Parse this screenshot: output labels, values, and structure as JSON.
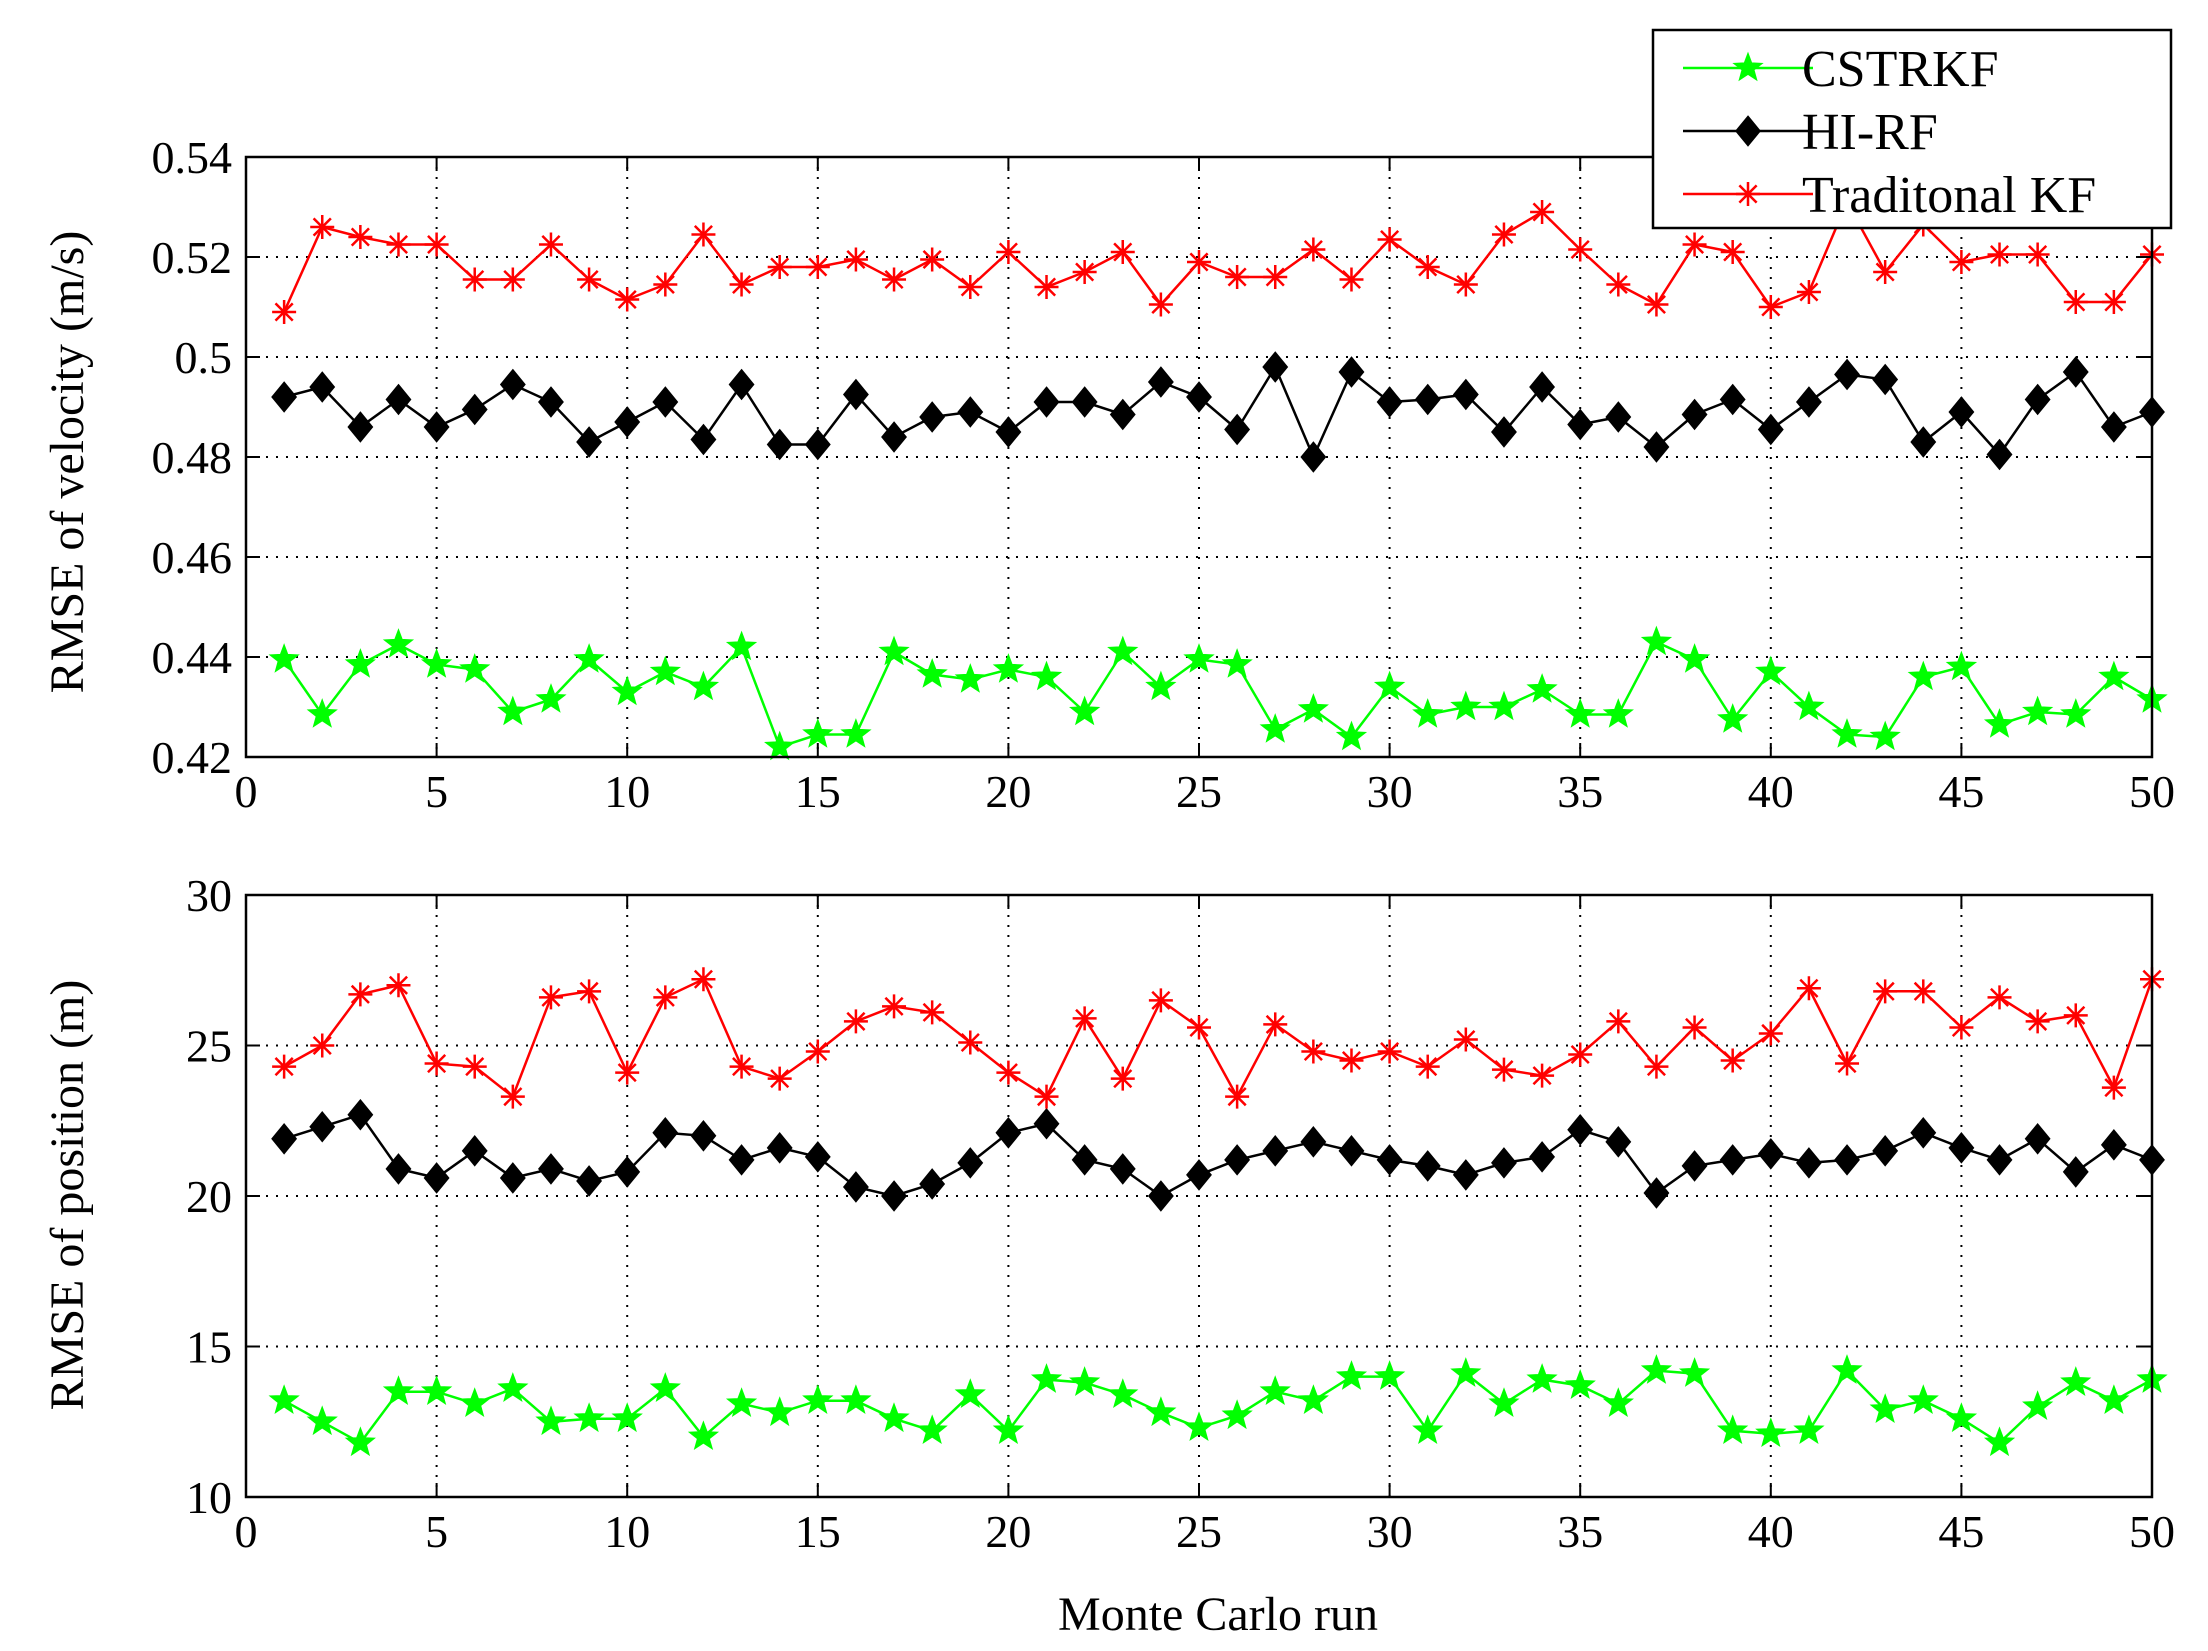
{
  "chart_data": [
    {
      "type": "line",
      "title": "",
      "xlabel": "",
      "ylabel": "RMSE of velocity (m/s)",
      "xlim": [
        0,
        50
      ],
      "ylim": [
        0.42,
        0.54
      ],
      "xticks": [
        0,
        5,
        10,
        15,
        20,
        25,
        30,
        35,
        40,
        45,
        50
      ],
      "yticks": [
        0.42,
        0.44,
        0.46,
        0.48,
        0.5,
        0.52,
        0.54
      ],
      "ytick_labels": [
        "0.42",
        "0.44",
        "0.46",
        "0.48",
        "0.5",
        "0.52",
        "0.54"
      ],
      "grid": true,
      "legend_position": "top-right",
      "x": [
        1,
        2,
        3,
        4,
        5,
        6,
        7,
        8,
        9,
        10,
        11,
        12,
        13,
        14,
        15,
        16,
        17,
        18,
        19,
        20,
        21,
        22,
        23,
        24,
        25,
        26,
        27,
        28,
        29,
        30,
        31,
        32,
        33,
        34,
        35,
        36,
        37,
        38,
        39,
        40,
        41,
        42,
        43,
        44,
        45,
        46,
        47,
        48,
        49,
        50
      ],
      "series": [
        {
          "name": "CSTRKF",
          "color": "#00ff00",
          "marker": "pentagram",
          "values": [
            0.4395,
            0.4285,
            0.4385,
            0.4425,
            0.4385,
            0.4375,
            0.429,
            0.4315,
            0.4395,
            0.433,
            0.437,
            0.434,
            0.442,
            0.422,
            0.4245,
            0.4245,
            0.441,
            0.4365,
            0.4355,
            0.4375,
            0.436,
            0.429,
            0.441,
            0.434,
            0.4395,
            0.4385,
            0.4255,
            0.4295,
            0.424,
            0.434,
            0.4285,
            0.43,
            0.43,
            0.4335,
            0.4285,
            0.4285,
            0.443,
            0.4395,
            0.4275,
            0.437,
            0.43,
            0.4245,
            0.424,
            0.436,
            0.438,
            0.4265,
            0.429,
            0.4285,
            0.436,
            0.4315
          ]
        },
        {
          "name": "HI-RF",
          "color": "#000000",
          "marker": "diamond",
          "values": [
            0.492,
            0.494,
            0.486,
            0.4915,
            0.486,
            0.4895,
            0.4945,
            0.491,
            0.483,
            0.487,
            0.491,
            0.4835,
            0.4945,
            0.4825,
            0.4825,
            0.4925,
            0.484,
            0.488,
            0.489,
            0.485,
            0.491,
            0.491,
            0.4885,
            0.495,
            0.492,
            0.4855,
            0.498,
            0.48,
            0.497,
            0.491,
            0.4915,
            0.4925,
            0.485,
            0.494,
            0.4865,
            0.488,
            0.482,
            0.4885,
            0.4915,
            0.4855,
            0.491,
            0.4965,
            0.4955,
            0.483,
            0.489,
            0.4805,
            0.4915,
            0.497,
            0.486,
            0.489
          ]
        },
        {
          "name": "Traditonal KF",
          "color": "#ff0000",
          "marker": "asterisk",
          "values": [
            0.509,
            0.526,
            0.524,
            0.5225,
            0.5225,
            0.5155,
            0.5155,
            0.5225,
            0.5155,
            0.5115,
            0.5145,
            0.5245,
            0.5145,
            0.518,
            0.518,
            0.5195,
            0.5155,
            0.5195,
            0.514,
            0.521,
            0.514,
            0.517,
            0.521,
            0.5105,
            0.519,
            0.516,
            0.516,
            0.5215,
            0.5155,
            0.5235,
            0.518,
            0.5145,
            0.5245,
            0.529,
            0.5215,
            0.5145,
            0.5105,
            0.5225,
            0.521,
            0.51,
            0.513,
            0.531,
            0.517,
            0.5265,
            0.519,
            0.5205,
            0.5205,
            0.511,
            0.511,
            0.5205
          ]
        }
      ]
    },
    {
      "type": "line",
      "title": "",
      "xlabel": "Monte Carlo run",
      "ylabel": "RMSE of position (m)",
      "xlim": [
        0,
        50
      ],
      "ylim": [
        10,
        30
      ],
      "xticks": [
        0,
        5,
        10,
        15,
        20,
        25,
        30,
        35,
        40,
        45,
        50
      ],
      "yticks": [
        10,
        15,
        20,
        25,
        30
      ],
      "ytick_labels": [
        "10",
        "15",
        "20",
        "25",
        "30"
      ],
      "grid": true,
      "x": [
        1,
        2,
        3,
        4,
        5,
        6,
        7,
        8,
        9,
        10,
        11,
        12,
        13,
        14,
        15,
        16,
        17,
        18,
        19,
        20,
        21,
        22,
        23,
        24,
        25,
        26,
        27,
        28,
        29,
        30,
        31,
        32,
        33,
        34,
        35,
        36,
        37,
        38,
        39,
        40,
        41,
        42,
        43,
        44,
        45,
        46,
        47,
        48,
        49,
        50
      ],
      "series": [
        {
          "name": "CSTRKF",
          "color": "#00ff00",
          "marker": "pentagram",
          "values": [
            13.2,
            12.5,
            11.8,
            13.5,
            13.5,
            13.1,
            13.6,
            12.5,
            12.6,
            12.6,
            13.6,
            12.0,
            13.1,
            12.8,
            13.2,
            13.2,
            12.6,
            12.2,
            13.4,
            12.2,
            13.9,
            13.8,
            13.4,
            12.8,
            12.3,
            12.7,
            13.5,
            13.2,
            14.0,
            14.0,
            12.2,
            14.1,
            13.1,
            13.9,
            13.7,
            13.1,
            14.2,
            14.1,
            12.2,
            12.1,
            12.2,
            14.2,
            12.9,
            13.2,
            12.6,
            11.8,
            13.0,
            13.8,
            13.2,
            13.9
          ]
        },
        {
          "name": "HI-RF",
          "color": "#000000",
          "marker": "diamond",
          "values": [
            21.9,
            22.3,
            22.7,
            20.9,
            20.6,
            21.5,
            20.6,
            20.9,
            20.5,
            20.8,
            22.1,
            22.0,
            21.2,
            21.6,
            21.3,
            20.3,
            20.0,
            20.4,
            21.1,
            22.1,
            22.4,
            21.2,
            20.9,
            20.0,
            20.7,
            21.2,
            21.5,
            21.8,
            21.5,
            21.2,
            21.0,
            20.7,
            21.1,
            21.3,
            22.2,
            21.8,
            20.1,
            21.0,
            21.2,
            21.4,
            21.1,
            21.2,
            21.5,
            22.1,
            21.6,
            21.2,
            21.9,
            20.8,
            21.7,
            21.2
          ]
        },
        {
          "name": "Traditonal KF",
          "color": "#ff0000",
          "marker": "asterisk",
          "values": [
            24.3,
            25.0,
            26.7,
            27.0,
            24.4,
            24.3,
            23.3,
            26.6,
            26.8,
            24.1,
            26.6,
            27.2,
            24.3,
            23.9,
            24.8,
            25.8,
            26.3,
            26.1,
            25.1,
            24.1,
            23.3,
            25.9,
            23.9,
            26.5,
            25.6,
            23.3,
            25.7,
            24.8,
            24.5,
            24.8,
            24.3,
            25.2,
            24.2,
            24.0,
            24.7,
            25.8,
            24.3,
            25.6,
            24.5,
            25.4,
            26.9,
            24.4,
            26.8,
            26.8,
            25.6,
            26.6,
            25.8,
            26.0,
            23.6,
            27.2
          ]
        }
      ]
    }
  ],
  "legend": {
    "entries": [
      "CSTRKF",
      "HI-RF",
      "Traditonal KF"
    ]
  }
}
